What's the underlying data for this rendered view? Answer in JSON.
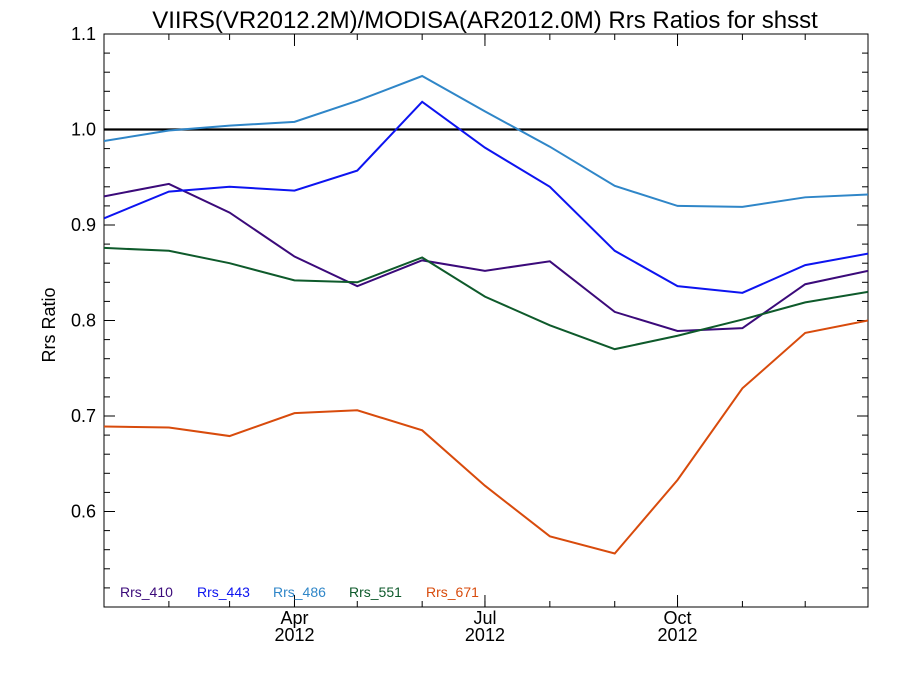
{
  "chart_data": {
    "type": "line",
    "title": "VIIRS(VR2012.2M)/MODISA(AR2012.0M)  Rrs Ratios for shsst",
    "ylabel": "Rrs Ratio",
    "xlabel": "",
    "ylim": [
      0.5,
      1.1
    ],
    "yticks": [
      "0.6",
      "0.7",
      "0.8",
      "0.9",
      "1.0",
      "1.1"
    ],
    "yticks_values": [
      0.6,
      0.7,
      0.8,
      0.9,
      1.0,
      1.1
    ],
    "xlim": [
      "2012-01-01",
      "2012-12-31"
    ],
    "xticks": [
      {
        "month": "Apr",
        "year": "2012",
        "date": "2012-04-01"
      },
      {
        "month": "Jul",
        "year": "2012",
        "date": "2012-07-01"
      },
      {
        "month": "Oct",
        "year": "2012",
        "date": "2012-10-01"
      }
    ],
    "x": [
      "2012-01-01",
      "2012-02-01",
      "2012-03-01",
      "2012-04-01",
      "2012-05-01",
      "2012-06-01",
      "2012-07-01",
      "2012-08-01",
      "2012-09-01",
      "2012-10-01",
      "2012-11-01",
      "2012-12-01",
      "2012-12-31"
    ],
    "reference_line": {
      "y": 1.0,
      "color": "#000000"
    },
    "grid": false,
    "legend_placement": "bottom-left",
    "series": [
      {
        "name": "Rrs_410",
        "color": "#3b0a7a",
        "values": [
          0.93,
          0.943,
          0.913,
          0.867,
          0.836,
          0.863,
          0.852,
          0.862,
          0.809,
          0.789,
          0.792,
          0.838,
          0.852
        ]
      },
      {
        "name": "Rrs_443",
        "color": "#0d14f0",
        "values": [
          0.907,
          0.935,
          0.94,
          0.936,
          0.957,
          1.029,
          0.981,
          0.94,
          0.873,
          0.836,
          0.829,
          0.858,
          0.87
        ]
      },
      {
        "name": "Rrs_486",
        "color": "#2f86c8",
        "values": [
          0.988,
          0.999,
          1.004,
          1.008,
          1.03,
          1.056,
          1.019,
          0.982,
          0.941,
          0.92,
          0.919,
          0.929,
          0.932
        ]
      },
      {
        "name": "Rrs_551",
        "color": "#0e5a2b",
        "values": [
          0.876,
          0.873,
          0.86,
          0.842,
          0.84,
          0.866,
          0.825,
          0.795,
          0.77,
          0.784,
          0.801,
          0.819,
          0.83
        ]
      },
      {
        "name": "Rrs_671",
        "color": "#d84b0c",
        "values": [
          0.689,
          0.688,
          0.679,
          0.703,
          0.706,
          0.685,
          0.627,
          0.574,
          0.556,
          0.633,
          0.729,
          0.787,
          0.8
        ]
      }
    ]
  }
}
